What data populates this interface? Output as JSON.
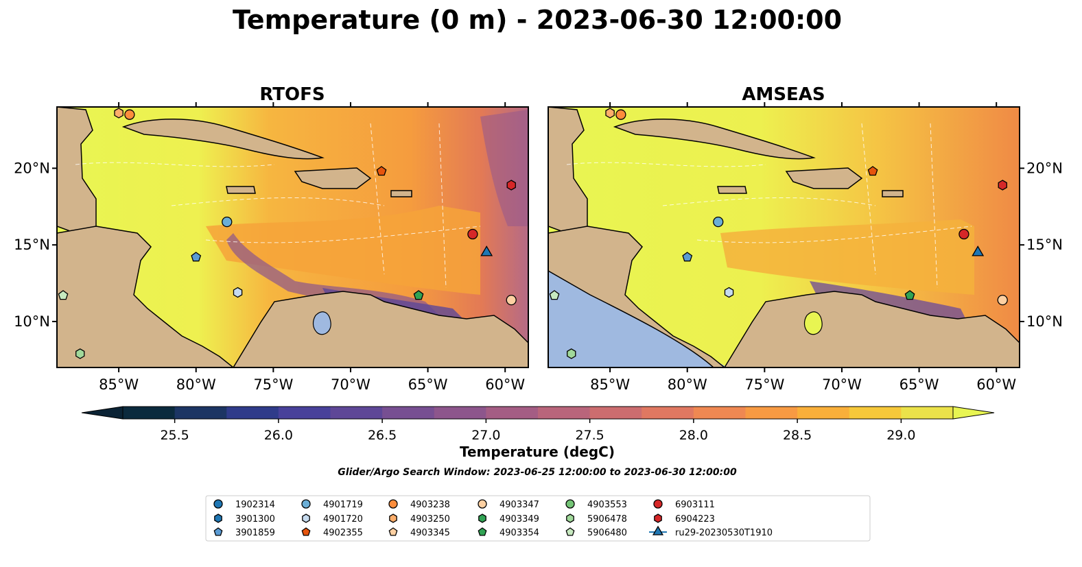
{
  "figure": {
    "title": "Temperature (0 m) - 2023-06-30 12:00:00",
    "colorbar_label": "Temperature (degC)",
    "search_window": "Glider/Argo Search Window: 2023-06-25 12:00:00 to 2023-06-30 12:00:00",
    "land_color": "#d2b48c",
    "ocean_colors": [
      "#e8f552",
      "#f4a83a",
      "#f07f45",
      "#c8607a",
      "#6b4a9a",
      "#9fb9e0"
    ]
  },
  "chart_data": [
    {
      "type": "heatmap",
      "title": "RTOFS",
      "xlim": [
        -89,
        -58.5
      ],
      "ylim": [
        7,
        24
      ],
      "xticks": [
        "85°W",
        "80°W",
        "75°W",
        "70°W",
        "65°W",
        "60°W"
      ],
      "yticks": [
        "10°N",
        "15°N",
        "20°N"
      ],
      "grid": true
    },
    {
      "type": "heatmap",
      "title": "AMSEAS",
      "xlim": [
        -89,
        -58.5
      ],
      "ylim": [
        7,
        24
      ],
      "xticks": [
        "85°W",
        "80°W",
        "75°W",
        "70°W",
        "65°W",
        "60°W"
      ],
      "yticks": [
        "10°N",
        "15°N",
        "20°N"
      ],
      "grid": true
    }
  ],
  "colorbar": {
    "min": 25.25,
    "max": 29.25,
    "ticks": [
      "25.5",
      "26.0",
      "26.5",
      "27.0",
      "27.5",
      "28.0",
      "28.5",
      "29.0"
    ],
    "tick_values": [
      25.5,
      26.0,
      26.5,
      27.0,
      27.5,
      28.0,
      28.5,
      29.0
    ],
    "colors": [
      "#0b2a3d",
      "#1c3563",
      "#2f3b8a",
      "#48419a",
      "#5e4797",
      "#774f92",
      "#8d568c",
      "#a45d84",
      "#b9657b",
      "#cc6d6f",
      "#e07861",
      "#ef8852",
      "#f79a43",
      "#f9af3a",
      "#f6c83a",
      "#ebe24a"
    ],
    "extend_low": "#0b2335",
    "extend_high": "#e8f552"
  },
  "floats": [
    {
      "id": "1902314",
      "marker": "circle",
      "color": "#1f77b4",
      "lon": null,
      "lat": null
    },
    {
      "id": "3901300",
      "marker": "hexagon",
      "color": "#1f77b4",
      "lon": null,
      "lat": null
    },
    {
      "id": "3901859",
      "marker": "pentagon",
      "color": "#5a9bd4",
      "lon": -80,
      "lat": 14.2
    },
    {
      "id": "4901719",
      "marker": "circle",
      "color": "#6baed6",
      "lon": -78,
      "lat": 16.5
    },
    {
      "id": "4901720",
      "marker": "hexagon",
      "color": "#c6dbef",
      "lon": -77.3,
      "lat": 11.9
    },
    {
      "id": "4902355",
      "marker": "pentagon",
      "color": "#e6550d",
      "lon": -68,
      "lat": 19.8
    },
    {
      "id": "4903238",
      "marker": "circle",
      "color": "#fd8d3c",
      "lon": -84.3,
      "lat": 23.5
    },
    {
      "id": "4903250",
      "marker": "hexagon",
      "color": "#fdae6b",
      "lon": -85,
      "lat": 23.6
    },
    {
      "id": "4903345",
      "marker": "pentagon",
      "color": "#fdd0a2",
      "lon": null,
      "lat": null
    },
    {
      "id": "4903347",
      "marker": "circle",
      "color": "#fdd0a2",
      "lon": -59.6,
      "lat": 11.4
    },
    {
      "id": "4903349",
      "marker": "hexagon",
      "color": "#31a354",
      "lon": null,
      "lat": null
    },
    {
      "id": "4903354",
      "marker": "pentagon",
      "color": "#31a354",
      "lon": -65.6,
      "lat": 11.7
    },
    {
      "id": "4903553",
      "marker": "circle",
      "color": "#74c476",
      "lon": null,
      "lat": null
    },
    {
      "id": "5906478",
      "marker": "hexagon",
      "color": "#a1d99b",
      "lon": -87.5,
      "lat": 7.9
    },
    {
      "id": "5906480",
      "marker": "pentagon",
      "color": "#c7e9c0",
      "lon": -88.6,
      "lat": 11.7
    },
    {
      "id": "6903111",
      "marker": "circle",
      "color": "#d62728",
      "lon": -62.1,
      "lat": 15.7
    },
    {
      "id": "6904223",
      "marker": "hexagon",
      "color": "#d62728",
      "lon": -59.6,
      "lat": 18.9
    },
    {
      "id": "ru29-20230530T1910",
      "marker": "triangle",
      "color": "#1f77b4",
      "lon": -61.2,
      "lat": 14.5
    }
  ]
}
